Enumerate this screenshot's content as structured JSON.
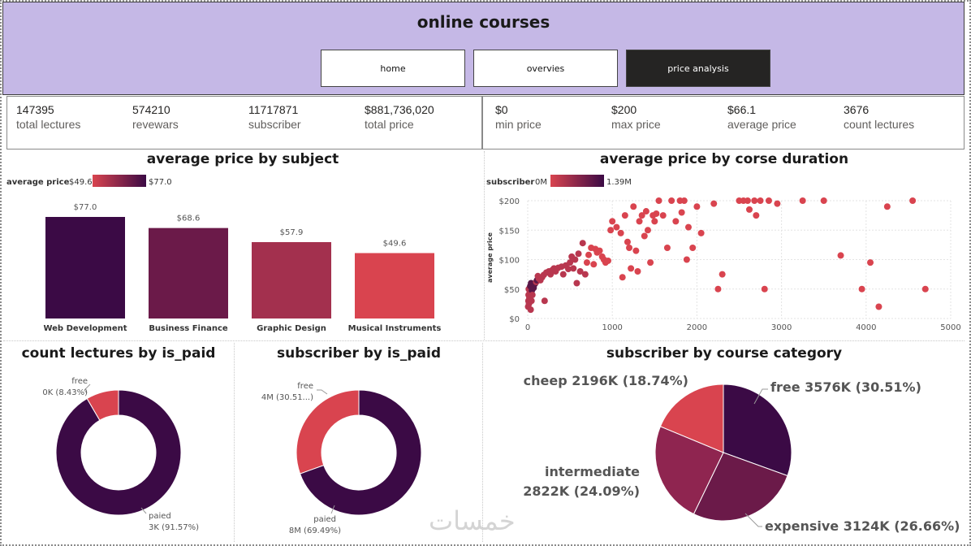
{
  "header": {
    "title": "online courses"
  },
  "nav": [
    {
      "label": "home"
    },
    {
      "label": "overvies"
    },
    {
      "label": "price analysis"
    }
  ],
  "kpis_left": [
    {
      "value": "147395",
      "label": "total lectures"
    },
    {
      "value": "574210",
      "label": "revewars"
    },
    {
      "value": "11717871",
      "label": "subscriber"
    },
    {
      "value": "$881,736,020",
      "label": "total price"
    }
  ],
  "kpis_right": [
    {
      "value": "$0",
      "label": "min price"
    },
    {
      "value": "$200",
      "label": "max price"
    },
    {
      "value": "$66.1",
      "label": "average price"
    },
    {
      "value": "3676",
      "label": "count lectures"
    }
  ],
  "colors": {
    "dark": "#3b0a45",
    "mid1": "#6b1a49",
    "mid2": "#a3304e",
    "light": "#d9444f"
  },
  "chart_data": [
    {
      "type": "bar",
      "title": "average price by subject",
      "legend": {
        "label": "average price",
        "min": "$49.6",
        "max": "$77.0"
      },
      "categories": [
        "Web Development",
        "Business Finance",
        "Graphic Design",
        "Musical Instruments"
      ],
      "values": [
        77.0,
        68.6,
        57.9,
        49.6
      ],
      "value_labels": [
        "$77.0",
        "$68.6",
        "$57.9",
        "$49.6"
      ],
      "colors": [
        "#3b0a45",
        "#6b1a49",
        "#a3304e",
        "#d9444f"
      ],
      "ylim": [
        0,
        80
      ]
    },
    {
      "type": "scatter",
      "title": "average price by corse duration",
      "legend": {
        "label": "subscriber",
        "min": "0M",
        "max": "1.39M"
      },
      "ylabel": "average price",
      "xlim": [
        0,
        5000
      ],
      "ylim": [
        0,
        200
      ],
      "x_ticks": [
        "0",
        "1000",
        "2000",
        "3000",
        "4000",
        "5000"
      ],
      "y_ticks": [
        "$0",
        "$50",
        "$100",
        "$150",
        "$200"
      ],
      "points": [
        [
          5,
          20
        ],
        [
          8,
          30
        ],
        [
          10,
          40
        ],
        [
          12,
          50
        ],
        [
          15,
          25
        ],
        [
          20,
          35
        ],
        [
          25,
          45
        ],
        [
          30,
          55
        ],
        [
          35,
          15
        ],
        [
          40,
          60
        ],
        [
          45,
          30
        ],
        [
          50,
          48
        ],
        [
          55,
          40
        ],
        [
          60,
          55
        ],
        [
          70,
          52
        ],
        [
          80,
          58
        ],
        [
          90,
          60
        ],
        [
          100,
          62
        ],
        [
          110,
          65
        ],
        [
          120,
          72
        ],
        [
          130,
          68
        ],
        [
          150,
          65
        ],
        [
          170,
          70
        ],
        [
          190,
          74
        ],
        [
          200,
          30
        ],
        [
          220,
          78
        ],
        [
          250,
          80
        ],
        [
          270,
          75
        ],
        [
          290,
          82
        ],
        [
          310,
          85
        ],
        [
          330,
          80
        ],
        [
          360,
          86
        ],
        [
          400,
          88
        ],
        [
          420,
          75
        ],
        [
          450,
          90
        ],
        [
          480,
          84
        ],
        [
          500,
          95
        ],
        [
          520,
          105
        ],
        [
          540,
          85
        ],
        [
          560,
          100
        ],
        [
          580,
          60
        ],
        [
          600,
          110
        ],
        [
          620,
          80
        ],
        [
          650,
          128
        ],
        [
          680,
          75
        ],
        [
          700,
          95
        ],
        [
          720,
          108
        ],
        [
          750,
          120
        ],
        [
          780,
          92
        ],
        [
          800,
          118
        ],
        [
          820,
          112
        ],
        [
          850,
          115
        ],
        [
          880,
          105
        ],
        [
          900,
          100
        ],
        [
          920,
          95
        ],
        [
          950,
          98
        ],
        [
          980,
          150
        ],
        [
          1000,
          165
        ],
        [
          1050,
          155
        ],
        [
          1100,
          145
        ],
        [
          1120,
          70
        ],
        [
          1150,
          175
        ],
        [
          1180,
          130
        ],
        [
          1200,
          120
        ],
        [
          1220,
          85
        ],
        [
          1250,
          190
        ],
        [
          1280,
          115
        ],
        [
          1300,
          80
        ],
        [
          1320,
          165
        ],
        [
          1350,
          175
        ],
        [
          1380,
          140
        ],
        [
          1400,
          182
        ],
        [
          1420,
          150
        ],
        [
          1450,
          95
        ],
        [
          1480,
          175
        ],
        [
          1500,
          165
        ],
        [
          1520,
          178
        ],
        [
          1550,
          200
        ],
        [
          1600,
          175
        ],
        [
          1650,
          120
        ],
        [
          1700,
          200
        ],
        [
          1750,
          165
        ],
        [
          1800,
          200
        ],
        [
          1820,
          180
        ],
        [
          1850,
          200
        ],
        [
          1880,
          100
        ],
        [
          1900,
          155
        ],
        [
          1950,
          120
        ],
        [
          2000,
          190
        ],
        [
          2050,
          145
        ],
        [
          2200,
          195
        ],
        [
          2250,
          50
        ],
        [
          2300,
          75
        ],
        [
          2500,
          200
        ],
        [
          2550,
          200
        ],
        [
          2600,
          200
        ],
        [
          2620,
          185
        ],
        [
          2680,
          200
        ],
        [
          2700,
          175
        ],
        [
          2750,
          200
        ],
        [
          2800,
          50
        ],
        [
          2850,
          200
        ],
        [
          2950,
          195
        ],
        [
          3250,
          200
        ],
        [
          3500,
          200
        ],
        [
          3700,
          107
        ],
        [
          3950,
          50
        ],
        [
          4050,
          95
        ],
        [
          4150,
          20
        ],
        [
          4250,
          190
        ],
        [
          4550,
          200
        ],
        [
          4700,
          50
        ]
      ]
    },
    {
      "type": "pie",
      "title": "count lectures by is_paid",
      "slices": [
        {
          "name": "free",
          "value": 8.43,
          "label": "0K (8.43%)"
        },
        {
          "name": "paied",
          "value": 91.57,
          "label": "3K (91.57%)"
        }
      ]
    },
    {
      "type": "pie",
      "title": "subscriber by is_paid",
      "slices": [
        {
          "name": "free",
          "value": 30.51,
          "label": "4M (30.51...)"
        },
        {
          "name": "paied",
          "value": 69.49,
          "label": "8M (69.49%)"
        }
      ]
    },
    {
      "type": "pie",
      "title": "subscriber by course category",
      "slices": [
        {
          "name": "free",
          "value": 30.51,
          "label": "free 3576K (30.51%)"
        },
        {
          "name": "expensive",
          "value": 26.66,
          "label": "expensive 3124K (26.66%)"
        },
        {
          "name": "intermediate",
          "value": 24.09,
          "label": "intermediate 2822K (24.09%)",
          "label_line1": "intermediate",
          "label_line2": "2822K (24.09%)"
        },
        {
          "name": "cheep",
          "value": 18.74,
          "label": "cheep 2196K (18.74%)"
        }
      ]
    }
  ],
  "watermark": "خمسات"
}
